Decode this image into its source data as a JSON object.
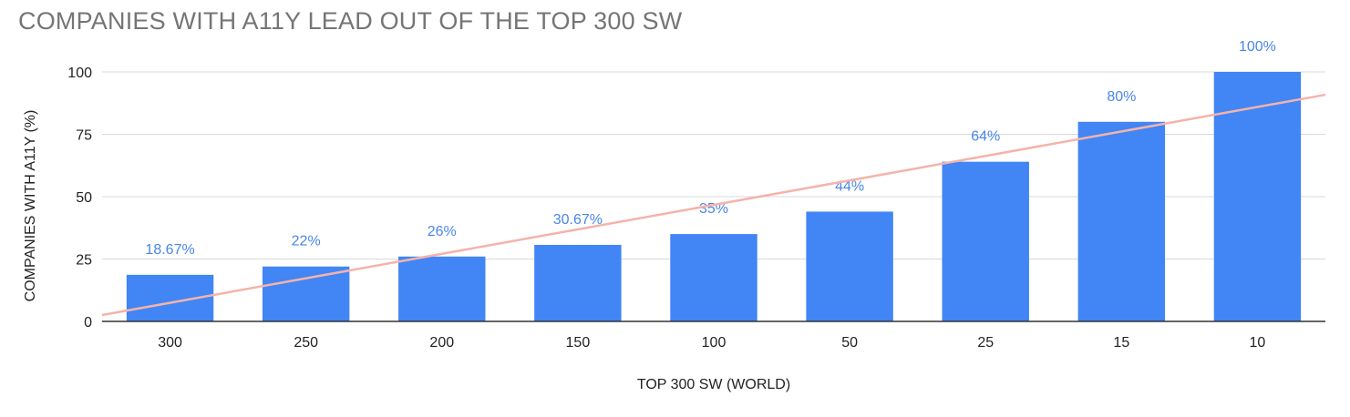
{
  "chart_data": {
    "type": "bar",
    "title": "COMPANIES WITH A11Y LEAD OUT OF THE TOP 300 SW",
    "xlabel": "TOP 300 SW (WORLD)",
    "ylabel": "COMPANIES WITH A11Y (%)",
    "categories": [
      "300",
      "250",
      "200",
      "150",
      "100",
      "50",
      "25",
      "15",
      "10"
    ],
    "values": [
      18.67,
      22,
      26,
      30.67,
      35,
      44,
      64,
      80,
      100
    ],
    "data_labels": [
      "18.67%",
      "22%",
      "26%",
      "30.67%",
      "35%",
      "44%",
      "64%",
      "80%",
      "100%"
    ],
    "ylim": [
      0,
      100
    ],
    "yticks": [
      0,
      25,
      50,
      75,
      100
    ],
    "ytick_labels": [
      "0",
      "25",
      "50",
      "75",
      "100"
    ],
    "grid": true,
    "legend": "none",
    "trendline": {
      "type": "linear",
      "color": "#f4b3ab"
    },
    "colors": {
      "bar": "#4285f4",
      "label": "#4a86e8",
      "grid": "#d9d9d9",
      "axis": "#333333"
    }
  }
}
